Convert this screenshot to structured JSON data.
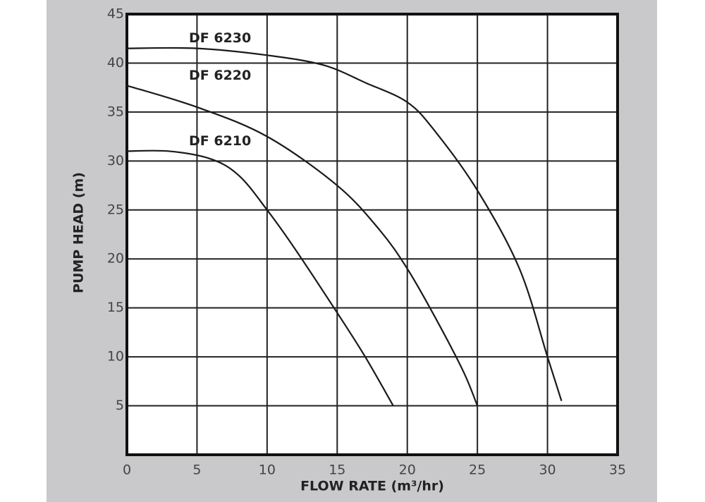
{
  "chart_data": {
    "type": "line",
    "x_label": "FLOW RATE (m³/hr)",
    "y_label": "PUMP HEAD (m)",
    "xlim": [
      0,
      35
    ],
    "xticks": [
      0,
      5,
      10,
      15,
      20,
      25,
      30,
      35
    ],
    "ylim": [
      0,
      45
    ],
    "yticks": [
      5,
      10,
      15,
      20,
      25,
      30,
      35,
      40,
      45
    ],
    "grid": true,
    "series": [
      {
        "name": "DF 6230",
        "color": "#1a1a1a",
        "x": [
          0,
          5,
          10,
          14,
          17,
          20,
          22,
          25,
          28,
          30,
          31
        ],
        "values": [
          41.5,
          41.5,
          40.8,
          39.8,
          38,
          36,
          33,
          27,
          19,
          10,
          5.5
        ]
      },
      {
        "name": "DF 6220",
        "color": "#1a1a1a",
        "x": [
          0,
          5,
          10,
          15,
          18,
          20,
          22,
          24,
          25
        ],
        "values": [
          37.7,
          35.5,
          32.5,
          27.5,
          23,
          19,
          14,
          8.5,
          5
        ]
      },
      {
        "name": "DF 6210",
        "color": "#1a1a1a",
        "x": [
          0,
          3,
          6,
          8,
          10,
          12,
          15,
          17,
          19
        ],
        "values": [
          31,
          31,
          30.2,
          28.5,
          25,
          21,
          14.5,
          10,
          5
        ]
      }
    ]
  }
}
